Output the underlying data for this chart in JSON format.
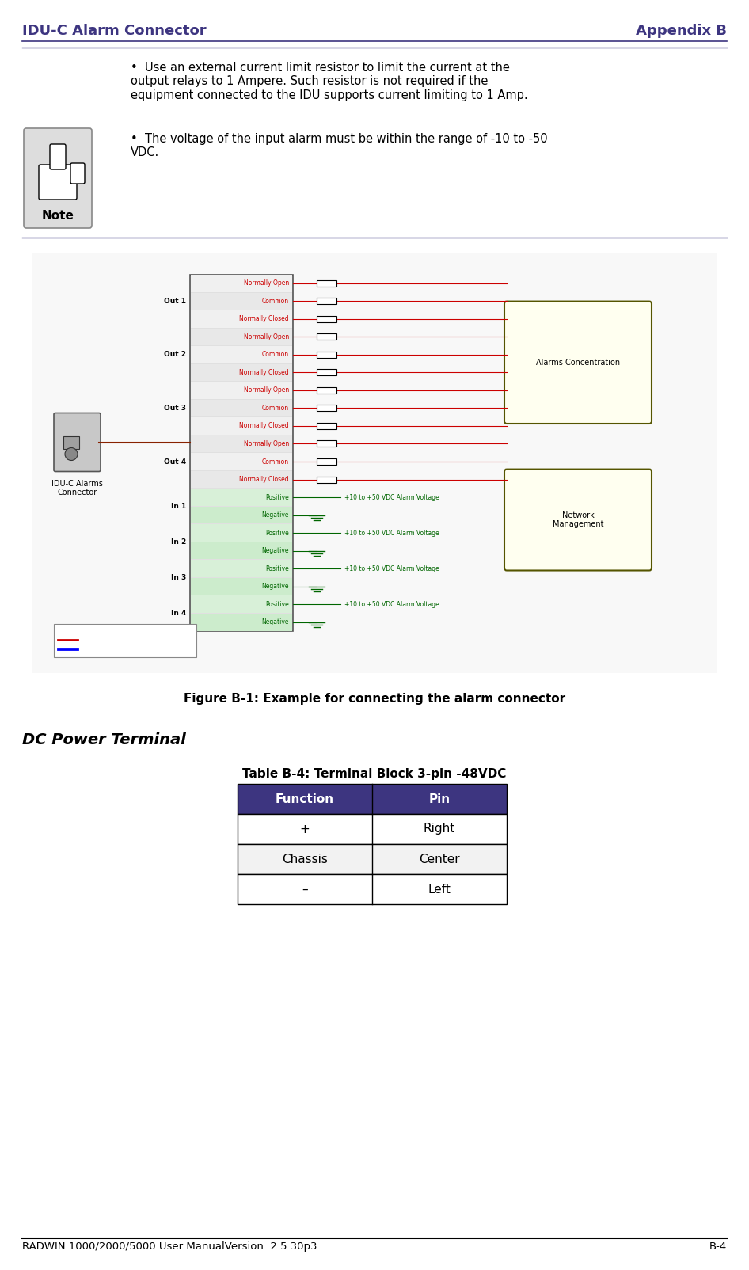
{
  "header_left": "IDU-C Alarm Connector",
  "header_right": "Appendix B",
  "header_color": "#3d3580",
  "footer_left": "RADWIN 1000/2000/5000 User ManualVersion  2.5.30p3",
  "footer_right": "B-4",
  "footer_color": "#000000",
  "note_bullet1": "Use an external current limit resistor to limit the current at the output relays to 1 Ampere. Such resistor is not required if the equipment connected to the IDU supports current limiting to 1 Amp.",
  "note_bullet2": "The voltage of the input alarm must be within the range of -10 to -50 VDC.",
  "figure_caption": "Figure B-1: Example for connecting the alarm connector",
  "section_title": "DC Power Terminal",
  "table_title": "Table B-4: Terminal Block 3-pin -48VDC",
  "table_headers": [
    "Function",
    "Pin"
  ],
  "table_rows": [
    [
      "+",
      "Right"
    ],
    [
      "Chassis",
      "Center"
    ],
    [
      "–",
      "Left"
    ]
  ],
  "bg_color": "#ffffff",
  "text_color": "#000000",
  "line_color": "#3d3580",
  "header_font_size": 13,
  "body_font_size": 10.5,
  "table_header_bg": "#3d3580",
  "table_header_fg": "#ffffff"
}
